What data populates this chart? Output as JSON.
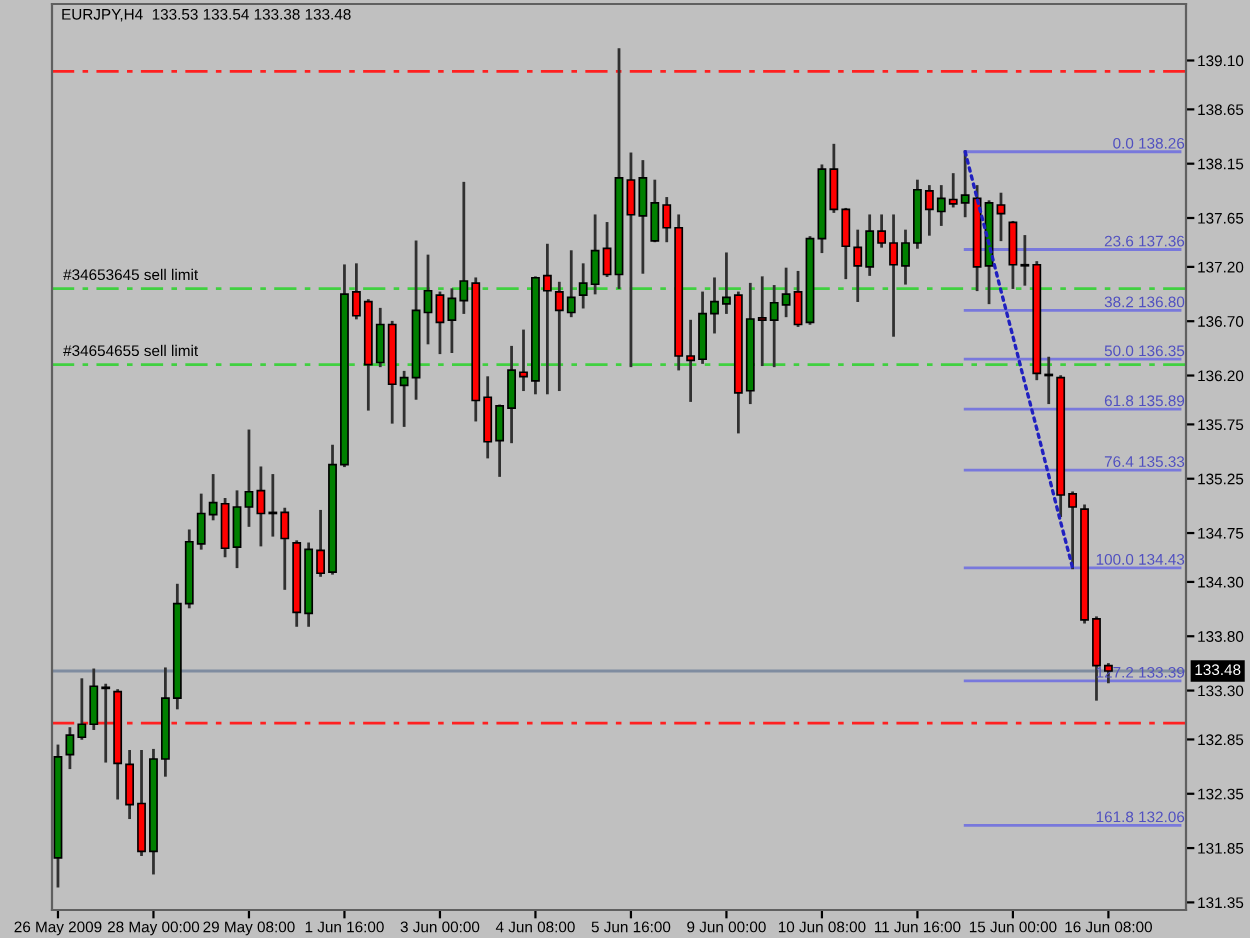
{
  "chart_data": {
    "type": "candlestick",
    "title": "EURJPY,H4  133.53 133.54 133.38 133.48",
    "categories": [
      "26 May 2009",
      null,
      null,
      null,
      null,
      null,
      null,
      null,
      "28 May 00:00",
      null,
      null,
      null,
      null,
      null,
      null,
      null,
      "29 May 08:00",
      null,
      null,
      null,
      null,
      null,
      null,
      null,
      "1 Jun 16:00",
      null,
      null,
      null,
      null,
      null,
      null,
      null,
      "3 Jun 00:00",
      null,
      null,
      null,
      null,
      null,
      null,
      null,
      "4 Jun 08:00",
      null,
      null,
      null,
      null,
      null,
      null,
      null,
      "5 Jun 16:00",
      null,
      null,
      null,
      null,
      null,
      null,
      null,
      "9 Jun 00:00",
      null,
      null,
      null,
      null,
      null,
      null,
      null,
      "10 Jun 08:00",
      null,
      null,
      null,
      null,
      null,
      null,
      null,
      "11 Jun 16:00",
      null,
      null,
      null,
      null,
      null,
      null,
      null,
      "15 Jun 00:00",
      null,
      null,
      null,
      null,
      null,
      null,
      null,
      "16 Jun 08:00",
      null,
      null,
      null,
      null,
      null,
      null
    ],
    "ohlc": [
      [
        131.76,
        132.79,
        131.5,
        132.69
      ],
      [
        132.71,
        132.95,
        132.59,
        132.89
      ],
      [
        132.87,
        133.4,
        132.86,
        132.99
      ],
      [
        132.99,
        133.49,
        132.95,
        133.34
      ],
      [
        133.33,
        133.35,
        132.65,
        133.32
      ],
      [
        133.29,
        133.3,
        132.31,
        132.63
      ],
      [
        132.62,
        132.74,
        132.13,
        132.25
      ],
      [
        132.26,
        132.74,
        131.79,
        131.82
      ],
      [
        131.82,
        132.75,
        131.62,
        132.67
      ],
      [
        132.67,
        133.5,
        132.52,
        133.23
      ],
      [
        133.23,
        134.27,
        133.14,
        134.1
      ],
      [
        134.1,
        134.77,
        134.07,
        134.67
      ],
      [
        134.65,
        135.1,
        134.61,
        134.93
      ],
      [
        134.92,
        135.28,
        134.88,
        135.03
      ],
      [
        135.02,
        135.06,
        134.54,
        134.61
      ],
      [
        134.62,
        135.13,
        134.44,
        134.99
      ],
      [
        134.99,
        135.69,
        134.82,
        135.13
      ],
      [
        135.14,
        135.35,
        134.64,
        134.93
      ],
      [
        134.94,
        135.28,
        134.73,
        134.93
      ],
      [
        134.94,
        134.97,
        134.24,
        134.7
      ],
      [
        134.66,
        134.67,
        133.9,
        134.02
      ],
      [
        134.01,
        134.65,
        133.9,
        134.6
      ],
      [
        134.59,
        134.95,
        134.36,
        134.38
      ],
      [
        134.39,
        135.55,
        134.38,
        135.38
      ],
      [
        135.38,
        137.21,
        135.37,
        136.95
      ],
      [
        136.97,
        137.22,
        136.73,
        136.75
      ],
      [
        136.88,
        136.89,
        135.89,
        136.3
      ],
      [
        136.32,
        136.81,
        136.29,
        136.67
      ],
      [
        136.67,
        136.69,
        135.77,
        136.12
      ],
      [
        136.11,
        136.23,
        135.74,
        136.18
      ],
      [
        136.18,
        137.43,
        135.99,
        136.8
      ],
      [
        136.78,
        137.3,
        136.5,
        136.98
      ],
      [
        136.94,
        136.96,
        136.41,
        136.69
      ],
      [
        136.71,
        136.99,
        136.42,
        136.91
      ],
      [
        136.89,
        137.97,
        136.78,
        137.07
      ],
      [
        137.05,
        137.09,
        135.79,
        135.97
      ],
      [
        136.0,
        136.18,
        135.45,
        135.59
      ],
      [
        135.6,
        135.92,
        135.28,
        135.92
      ],
      [
        135.9,
        136.46,
        135.59,
        136.25
      ],
      [
        136.23,
        136.61,
        136.07,
        136.19
      ],
      [
        136.15,
        137.1,
        136.04,
        137.1
      ],
      [
        137.12,
        137.4,
        136.04,
        136.98
      ],
      [
        136.97,
        137.05,
        136.07,
        136.8
      ],
      [
        136.78,
        137.34,
        136.75,
        136.92
      ],
      [
        136.94,
        137.22,
        136.83,
        137.05
      ],
      [
        137.04,
        137.67,
        136.96,
        137.35
      ],
      [
        137.37,
        137.6,
        137.12,
        137.13
      ],
      [
        137.13,
        139.2,
        137.01,
        138.02
      ],
      [
        138.0,
        138.24,
        136.29,
        137.68
      ],
      [
        137.67,
        138.17,
        137.15,
        138.02
      ],
      [
        137.44,
        137.99,
        137.44,
        137.79
      ],
      [
        137.77,
        137.83,
        137.44,
        137.56
      ],
      [
        137.56,
        137.67,
        136.26,
        136.38
      ],
      [
        136.38,
        136.7,
        135.97,
        136.34
      ],
      [
        136.35,
        136.96,
        136.32,
        136.77
      ],
      [
        136.77,
        137.09,
        136.6,
        136.88
      ],
      [
        136.86,
        137.32,
        136.78,
        136.92
      ],
      [
        136.94,
        136.96,
        135.68,
        136.04
      ],
      [
        136.06,
        137.04,
        135.95,
        136.72
      ],
      [
        136.73,
        137.1,
        136.3,
        136.71
      ],
      [
        136.71,
        137.02,
        136.29,
        136.87
      ],
      [
        136.85,
        137.18,
        136.75,
        136.95
      ],
      [
        136.97,
        137.15,
        136.66,
        136.67
      ],
      [
        136.69,
        137.47,
        136.68,
        137.46
      ],
      [
        137.46,
        138.13,
        137.34,
        138.1
      ],
      [
        138.1,
        138.32,
        137.71,
        137.73
      ],
      [
        137.73,
        137.73,
        137.1,
        137.39
      ],
      [
        137.38,
        137.53,
        136.89,
        137.21
      ],
      [
        137.2,
        137.67,
        137.13,
        137.53
      ],
      [
        137.53,
        137.67,
        137.39,
        137.42
      ],
      [
        137.42,
        137.67,
        136.57,
        137.22
      ],
      [
        137.21,
        137.53,
        137.05,
        137.42
      ],
      [
        137.42,
        137.99,
        137.38,
        137.91
      ],
      [
        137.9,
        137.94,
        137.5,
        137.73
      ],
      [
        137.71,
        137.94,
        137.59,
        137.83
      ],
      [
        137.82,
        138.05,
        137.76,
        137.78
      ],
      [
        137.79,
        138.26,
        137.67,
        137.86
      ],
      [
        137.83,
        137.94,
        136.99,
        137.2
      ],
      [
        137.21,
        137.8,
        136.87,
        137.79
      ],
      [
        137.77,
        137.87,
        137.45,
        137.69
      ],
      [
        137.61,
        137.61,
        137.01,
        137.22
      ],
      [
        137.22,
        137.48,
        137.04,
        137.21
      ],
      [
        137.22,
        137.24,
        136.17,
        136.22
      ],
      [
        136.21,
        136.36,
        135.95,
        136.2
      ],
      [
        136.18,
        136.19,
        134.91,
        135.1
      ],
      [
        135.11,
        135.12,
        134.43,
        134.99
      ],
      [
        134.97,
        135.0,
        133.93,
        133.95
      ],
      [
        133.96,
        133.97,
        133.22,
        133.53
      ],
      [
        133.53,
        133.54,
        133.38,
        133.48
      ],
      null,
      null,
      null,
      null,
      null,
      null
    ],
    "colors": [
      "#008000",
      "#008000",
      "#008000",
      "#008000",
      "#000000",
      "#ff0000",
      "#ff0000",
      "#ff0000",
      "#008000",
      "#008000",
      "#008000",
      "#008000",
      "#008000",
      "#008000",
      "#ff0000",
      "#008000",
      "#008000",
      "#ff0000",
      "#000000",
      "#ff0000",
      "#ff0000",
      "#008000",
      "#ff0000",
      "#008000",
      "#008000",
      "#ff0000",
      "#ff0000",
      "#008000",
      "#ff0000",
      "#008000",
      "#008000",
      "#008000",
      "#ff0000",
      "#008000",
      "#008000",
      "#ff0000",
      "#ff0000",
      "#008000",
      "#008000",
      "#ff0000",
      "#008000",
      "#ff0000",
      "#ff0000",
      "#008000",
      "#008000",
      "#008000",
      "#ff0000",
      "#008000",
      "#ff0000",
      "#008000",
      "#008000",
      "#ff0000",
      "#ff0000",
      "#ff0000",
      "#008000",
      "#008000",
      "#008000",
      "#ff0000",
      "#008000",
      "#ff0000",
      "#008000",
      "#008000",
      "#ff0000",
      "#008000",
      "#008000",
      "#ff0000",
      "#ff0000",
      "#ff0000",
      "#008000",
      "#ff0000",
      "#ff0000",
      "#008000",
      "#008000",
      "#ff0000",
      "#008000",
      "#ff0000",
      "#008000",
      "#ff0000",
      "#008000",
      "#ff0000",
      "#ff0000",
      "#000000",
      "#ff0000",
      "#000000",
      "#ff0000",
      "#ff0000",
      "#ff0000",
      "#ff0000",
      "#ff0000",
      null,
      null,
      null,
      null,
      null,
      null
    ],
    "series": [
      {
        "type": "line",
        "color": "#2020c0",
        "line_style": "dotted",
        "values": [
          null,
          null,
          null,
          null,
          null,
          null,
          null,
          null,
          null,
          null,
          null,
          null,
          null,
          null,
          null,
          null,
          null,
          null,
          null,
          null,
          null,
          null,
          null,
          null,
          null,
          null,
          null,
          null,
          null,
          null,
          null,
          null,
          null,
          null,
          null,
          null,
          null,
          null,
          null,
          null,
          null,
          null,
          null,
          null,
          null,
          null,
          null,
          null,
          null,
          null,
          null,
          null,
          null,
          null,
          null,
          null,
          null,
          null,
          null,
          null,
          null,
          null,
          null,
          null,
          null,
          null,
          null,
          null,
          null,
          null,
          null,
          null,
          null,
          null,
          null,
          null,
          138.26,
          137.83,
          137.41,
          136.98,
          136.56,
          136.13,
          135.71,
          135.28,
          134.85,
          134.43,
          null,
          null,
          null,
          null,
          null,
          null,
          null,
          null,
          null
        ]
      },
      {
        "type": "line",
        "color": "#7878dc",
        "line_style": "solid",
        "values": [
          null,
          null,
          null,
          null,
          null,
          null,
          null,
          null,
          null,
          null,
          null,
          null,
          null,
          null,
          null,
          null,
          null,
          null,
          null,
          null,
          null,
          null,
          null,
          null,
          null,
          null,
          null,
          null,
          null,
          null,
          null,
          null,
          null,
          null,
          null,
          null,
          null,
          null,
          null,
          null,
          null,
          null,
          null,
          null,
          null,
          null,
          null,
          null,
          null,
          null,
          null,
          null,
          null,
          null,
          null,
          null,
          null,
          null,
          null,
          null,
          null,
          null,
          null,
          null,
          null,
          null,
          null,
          null,
          null,
          null,
          null,
          null,
          null,
          null,
          null,
          null,
          138.26,
          138.26,
          138.26,
          138.26,
          138.26,
          138.26,
          138.26,
          138.26,
          138.26,
          138.26,
          138.26,
          138.26,
          138.26,
          138.26,
          138.26,
          138.26,
          138.26,
          138.26,
          138.26
        ]
      },
      {
        "type": "line",
        "color": "#7878dc",
        "line_style": "solid",
        "values": [
          null,
          null,
          null,
          null,
          null,
          null,
          null,
          null,
          null,
          null,
          null,
          null,
          null,
          null,
          null,
          null,
          null,
          null,
          null,
          null,
          null,
          null,
          null,
          null,
          null,
          null,
          null,
          null,
          null,
          null,
          null,
          null,
          null,
          null,
          null,
          null,
          null,
          null,
          null,
          null,
          null,
          null,
          null,
          null,
          null,
          null,
          null,
          null,
          null,
          null,
          null,
          null,
          null,
          null,
          null,
          null,
          null,
          null,
          null,
          null,
          null,
          null,
          null,
          null,
          null,
          null,
          null,
          null,
          null,
          null,
          null,
          null,
          null,
          null,
          null,
          null,
          137.36,
          137.36,
          137.36,
          137.36,
          137.36,
          137.36,
          137.36,
          137.36,
          137.36,
          137.36,
          137.36,
          137.36,
          137.36,
          137.36,
          137.36,
          137.36,
          137.36,
          137.36,
          137.36
        ]
      },
      {
        "type": "line",
        "color": "#7878dc",
        "line_style": "solid",
        "values": [
          null,
          null,
          null,
          null,
          null,
          null,
          null,
          null,
          null,
          null,
          null,
          null,
          null,
          null,
          null,
          null,
          null,
          null,
          null,
          null,
          null,
          null,
          null,
          null,
          null,
          null,
          null,
          null,
          null,
          null,
          null,
          null,
          null,
          null,
          null,
          null,
          null,
          null,
          null,
          null,
          null,
          null,
          null,
          null,
          null,
          null,
          null,
          null,
          null,
          null,
          null,
          null,
          null,
          null,
          null,
          null,
          null,
          null,
          null,
          null,
          null,
          null,
          null,
          null,
          null,
          null,
          null,
          null,
          null,
          null,
          null,
          null,
          null,
          null,
          null,
          null,
          136.8,
          136.8,
          136.8,
          136.8,
          136.8,
          136.8,
          136.8,
          136.8,
          136.8,
          136.8,
          136.8,
          136.8,
          136.8,
          136.8,
          136.8,
          136.8,
          136.8,
          136.8,
          136.8
        ]
      },
      {
        "type": "line",
        "color": "#7878dc",
        "line_style": "solid",
        "values": [
          null,
          null,
          null,
          null,
          null,
          null,
          null,
          null,
          null,
          null,
          null,
          null,
          null,
          null,
          null,
          null,
          null,
          null,
          null,
          null,
          null,
          null,
          null,
          null,
          null,
          null,
          null,
          null,
          null,
          null,
          null,
          null,
          null,
          null,
          null,
          null,
          null,
          null,
          null,
          null,
          null,
          null,
          null,
          null,
          null,
          null,
          null,
          null,
          null,
          null,
          null,
          null,
          null,
          null,
          null,
          null,
          null,
          null,
          null,
          null,
          null,
          null,
          null,
          null,
          null,
          null,
          null,
          null,
          null,
          null,
          null,
          null,
          null,
          null,
          null,
          null,
          136.35,
          136.35,
          136.35,
          136.35,
          136.35,
          136.35,
          136.35,
          136.35,
          136.35,
          136.35,
          136.35,
          136.35,
          136.35,
          136.35,
          136.35,
          136.35,
          136.35,
          136.35,
          136.35
        ]
      },
      {
        "type": "line",
        "color": "#7878dc",
        "line_style": "solid",
        "values": [
          null,
          null,
          null,
          null,
          null,
          null,
          null,
          null,
          null,
          null,
          null,
          null,
          null,
          null,
          null,
          null,
          null,
          null,
          null,
          null,
          null,
          null,
          null,
          null,
          null,
          null,
          null,
          null,
          null,
          null,
          null,
          null,
          null,
          null,
          null,
          null,
          null,
          null,
          null,
          null,
          null,
          null,
          null,
          null,
          null,
          null,
          null,
          null,
          null,
          null,
          null,
          null,
          null,
          null,
          null,
          null,
          null,
          null,
          null,
          null,
          null,
          null,
          null,
          null,
          null,
          null,
          null,
          null,
          null,
          null,
          null,
          null,
          null,
          null,
          null,
          null,
          135.89,
          135.89,
          135.89,
          135.89,
          135.89,
          135.89,
          135.89,
          135.89,
          135.89,
          135.89,
          135.89,
          135.89,
          135.89,
          135.89,
          135.89,
          135.89,
          135.89,
          135.89,
          135.89
        ]
      },
      {
        "type": "line",
        "color": "#7878dc",
        "line_style": "solid",
        "values": [
          null,
          null,
          null,
          null,
          null,
          null,
          null,
          null,
          null,
          null,
          null,
          null,
          null,
          null,
          null,
          null,
          null,
          null,
          null,
          null,
          null,
          null,
          null,
          null,
          null,
          null,
          null,
          null,
          null,
          null,
          null,
          null,
          null,
          null,
          null,
          null,
          null,
          null,
          null,
          null,
          null,
          null,
          null,
          null,
          null,
          null,
          null,
          null,
          null,
          null,
          null,
          null,
          null,
          null,
          null,
          null,
          null,
          null,
          null,
          null,
          null,
          null,
          null,
          null,
          null,
          null,
          null,
          null,
          null,
          null,
          null,
          null,
          null,
          null,
          null,
          null,
          135.33,
          135.33,
          135.33,
          135.33,
          135.33,
          135.33,
          135.33,
          135.33,
          135.33,
          135.33,
          135.33,
          135.33,
          135.33,
          135.33,
          135.33,
          135.33,
          135.33,
          135.33,
          135.33
        ]
      },
      {
        "type": "line",
        "color": "#7878dc",
        "line_style": "solid",
        "values": [
          null,
          null,
          null,
          null,
          null,
          null,
          null,
          null,
          null,
          null,
          null,
          null,
          null,
          null,
          null,
          null,
          null,
          null,
          null,
          null,
          null,
          null,
          null,
          null,
          null,
          null,
          null,
          null,
          null,
          null,
          null,
          null,
          null,
          null,
          null,
          null,
          null,
          null,
          null,
          null,
          null,
          null,
          null,
          null,
          null,
          null,
          null,
          null,
          null,
          null,
          null,
          null,
          null,
          null,
          null,
          null,
          null,
          null,
          null,
          null,
          null,
          null,
          null,
          null,
          null,
          null,
          null,
          null,
          null,
          null,
          null,
          null,
          null,
          null,
          null,
          null,
          134.43,
          134.43,
          134.43,
          134.43,
          134.43,
          134.43,
          134.43,
          134.43,
          134.43,
          134.43,
          134.43,
          134.43,
          134.43,
          134.43,
          134.43,
          134.43,
          134.43,
          134.43,
          134.43
        ]
      },
      {
        "type": "line",
        "color": "#7878dc",
        "line_style": "solid",
        "values": [
          null,
          null,
          null,
          null,
          null,
          null,
          null,
          null,
          null,
          null,
          null,
          null,
          null,
          null,
          null,
          null,
          null,
          null,
          null,
          null,
          null,
          null,
          null,
          null,
          null,
          null,
          null,
          null,
          null,
          null,
          null,
          null,
          null,
          null,
          null,
          null,
          null,
          null,
          null,
          null,
          null,
          null,
          null,
          null,
          null,
          null,
          null,
          null,
          null,
          null,
          null,
          null,
          null,
          null,
          null,
          null,
          null,
          null,
          null,
          null,
          null,
          null,
          null,
          null,
          null,
          null,
          null,
          null,
          null,
          null,
          null,
          null,
          null,
          null,
          null,
          null,
          133.39,
          133.39,
          133.39,
          133.39,
          133.39,
          133.39,
          133.39,
          133.39,
          133.39,
          133.39,
          133.39,
          133.39,
          133.39,
          133.39,
          133.39,
          133.39,
          133.39,
          133.39,
          133.39
        ]
      },
      {
        "type": "line",
        "color": "#7878dc",
        "line_style": "solid",
        "values": [
          null,
          null,
          null,
          null,
          null,
          null,
          null,
          null,
          null,
          null,
          null,
          null,
          null,
          null,
          null,
          null,
          null,
          null,
          null,
          null,
          null,
          null,
          null,
          null,
          null,
          null,
          null,
          null,
          null,
          null,
          null,
          null,
          null,
          null,
          null,
          null,
          null,
          null,
          null,
          null,
          null,
          null,
          null,
          null,
          null,
          null,
          null,
          null,
          null,
          null,
          null,
          null,
          null,
          null,
          null,
          null,
          null,
          null,
          null,
          null,
          null,
          null,
          null,
          null,
          null,
          null,
          null,
          null,
          null,
          null,
          null,
          null,
          null,
          null,
          null,
          null,
          132.06,
          132.06,
          132.06,
          132.06,
          132.06,
          132.06,
          132.06,
          132.06,
          132.06,
          132.06,
          132.06,
          132.06,
          132.06,
          132.06,
          132.06,
          132.06,
          132.06,
          132.06,
          132.06
        ]
      }
    ],
    "ref_lines": [
      {
        "axis": "y",
        "value": 139.0,
        "color": "#ff2020",
        "line_style": "dashdot"
      },
      {
        "axis": "y",
        "value": 137.0,
        "label": "#34653645 sell limit",
        "color": "#40d040",
        "line_style": "dashdot"
      },
      {
        "axis": "y",
        "value": 136.3,
        "label": "#34654655 sell limit",
        "color": "#40d040",
        "line_style": "dashdot"
      },
      {
        "axis": "y",
        "value": 133.48,
        "label": "133.48",
        "color": "#7f8ca0",
        "line_style": "solid"
      },
      {
        "axis": "y",
        "value": 133.0,
        "color": "#ff2020",
        "line_style": "dashdot"
      }
    ],
    "annotations": [
      {
        "text": "0.0 138.26",
        "x": "16 Jun 08:00",
        "y": 138.26
      },
      {
        "text": "23.6 137.36",
        "x": "16 Jun 08:00",
        "y": 137.36
      },
      {
        "text": "38.2 136.80",
        "x": "16 Jun 08:00",
        "y": 136.8
      },
      {
        "text": "50.0 136.35",
        "x": "16 Jun 08:00",
        "y": 136.35
      },
      {
        "text": "61.8 135.89",
        "x": "16 Jun 08:00",
        "y": 135.89
      },
      {
        "text": "76.4 135.33",
        "x": "16 Jun 08:00",
        "y": 135.33
      },
      {
        "text": "100.0 134.43",
        "x": "16 Jun 08:00",
        "y": 134.43
      },
      {
        "text": "127.2 133.39",
        "x": "16 Jun 08:00",
        "y": 133.39
      },
      {
        "text": "161.8 132.06",
        "x": "16 Jun 08:00",
        "y": 132.06
      }
    ],
    "ylim": [
      131.28,
      139.62
    ],
    "yticks": [
      {
        "value": 139.1,
        "label": "139.10"
      },
      {
        "value": 138.65,
        "label": "138.65"
      },
      {
        "value": 138.15,
        "label": "138.15"
      },
      {
        "value": 137.65,
        "label": "137.65"
      },
      {
        "value": 137.2,
        "label": "137.20"
      },
      {
        "value": 136.7,
        "label": "136.70"
      },
      {
        "value": 136.2,
        "label": "136.20"
      },
      {
        "value": 135.75,
        "label": "135.75"
      },
      {
        "value": 135.25,
        "label": "135.25"
      },
      {
        "value": 134.75,
        "label": "134.75"
      },
      {
        "value": 134.3,
        "label": "134.30"
      },
      {
        "value": 133.8,
        "label": "133.80"
      },
      {
        "value": 133.3,
        "label": "133.30"
      },
      {
        "value": 132.85,
        "label": "132.85"
      },
      {
        "value": 132.35,
        "label": "132.35"
      },
      {
        "value": 131.85,
        "label": "131.85"
      },
      {
        "value": 131.35,
        "label": "131.35"
      }
    ],
    "grid": false,
    "legend": false
  }
}
